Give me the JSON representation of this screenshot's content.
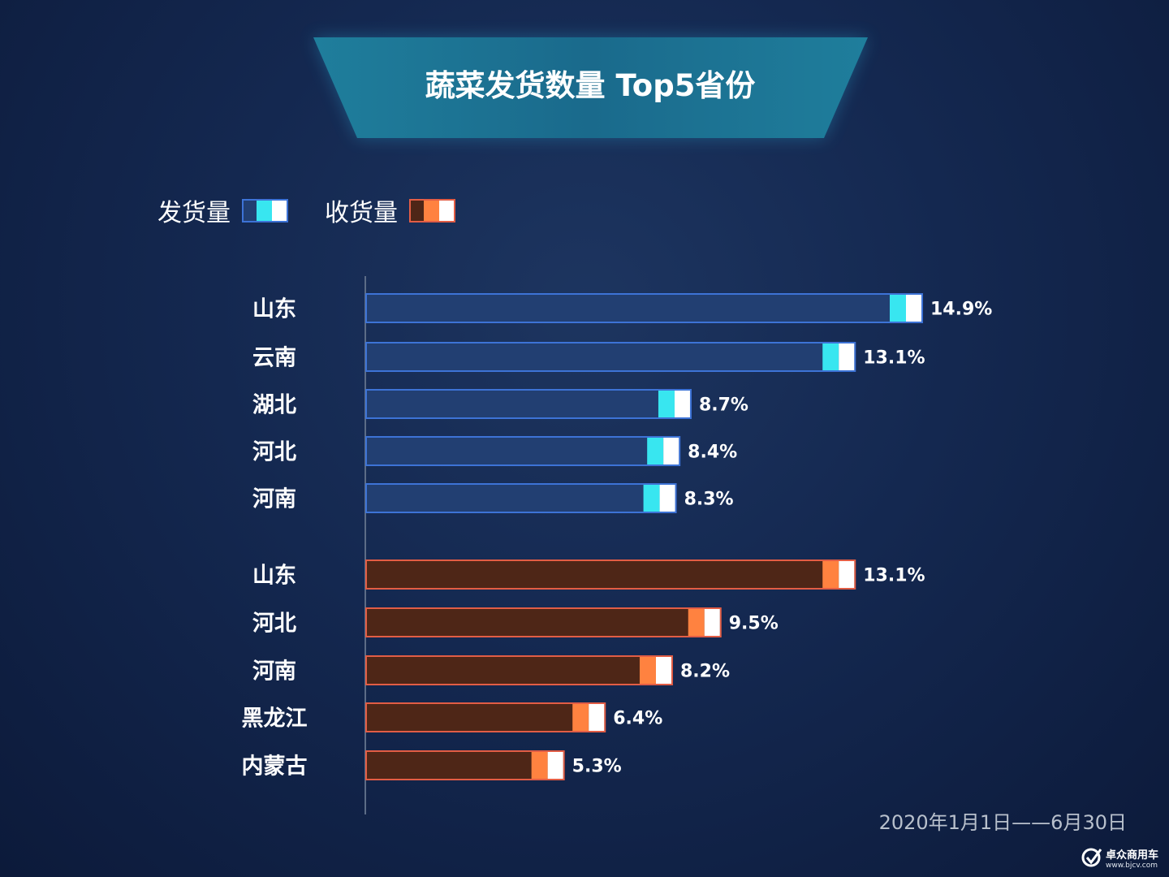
{
  "title": "蔬菜发货数量 Top5省份",
  "legend": [
    {
      "label": "发货量",
      "fill": "#223f72",
      "border": "#3d73d6",
      "accent": "#38e6f0"
    },
    {
      "label": "收货量",
      "fill": "#4e2617",
      "border": "#e25d45",
      "accent": "#ff8240"
    }
  ],
  "date_range": "2020年1月1日——6月30日",
  "logo": {
    "name": "卓众商用车",
    "url": "www.bjcv.com"
  },
  "chart_data": [
    {
      "type": "bar",
      "orientation": "horizontal",
      "series": [
        {
          "name": "发货量",
          "values": [
            14.9,
            13.1,
            8.7,
            8.4,
            8.3
          ]
        }
      ],
      "categories": [
        "山东",
        "云南",
        "湖北",
        "河北",
        "河南"
      ],
      "value_labels": [
        "14.9%",
        "13.1%",
        "8.7%",
        "8.4%",
        "8.3%"
      ]
    },
    {
      "type": "bar",
      "orientation": "horizontal",
      "series": [
        {
          "name": "收货量",
          "values": [
            13.1,
            9.5,
            8.2,
            6.4,
            5.3
          ]
        }
      ],
      "categories": [
        "山东",
        "河北",
        "河南",
        "黑龙江",
        "内蒙古"
      ],
      "value_labels": [
        "13.1%",
        "9.5%",
        "8.2%",
        "6.4%",
        "5.3%"
      ]
    }
  ]
}
